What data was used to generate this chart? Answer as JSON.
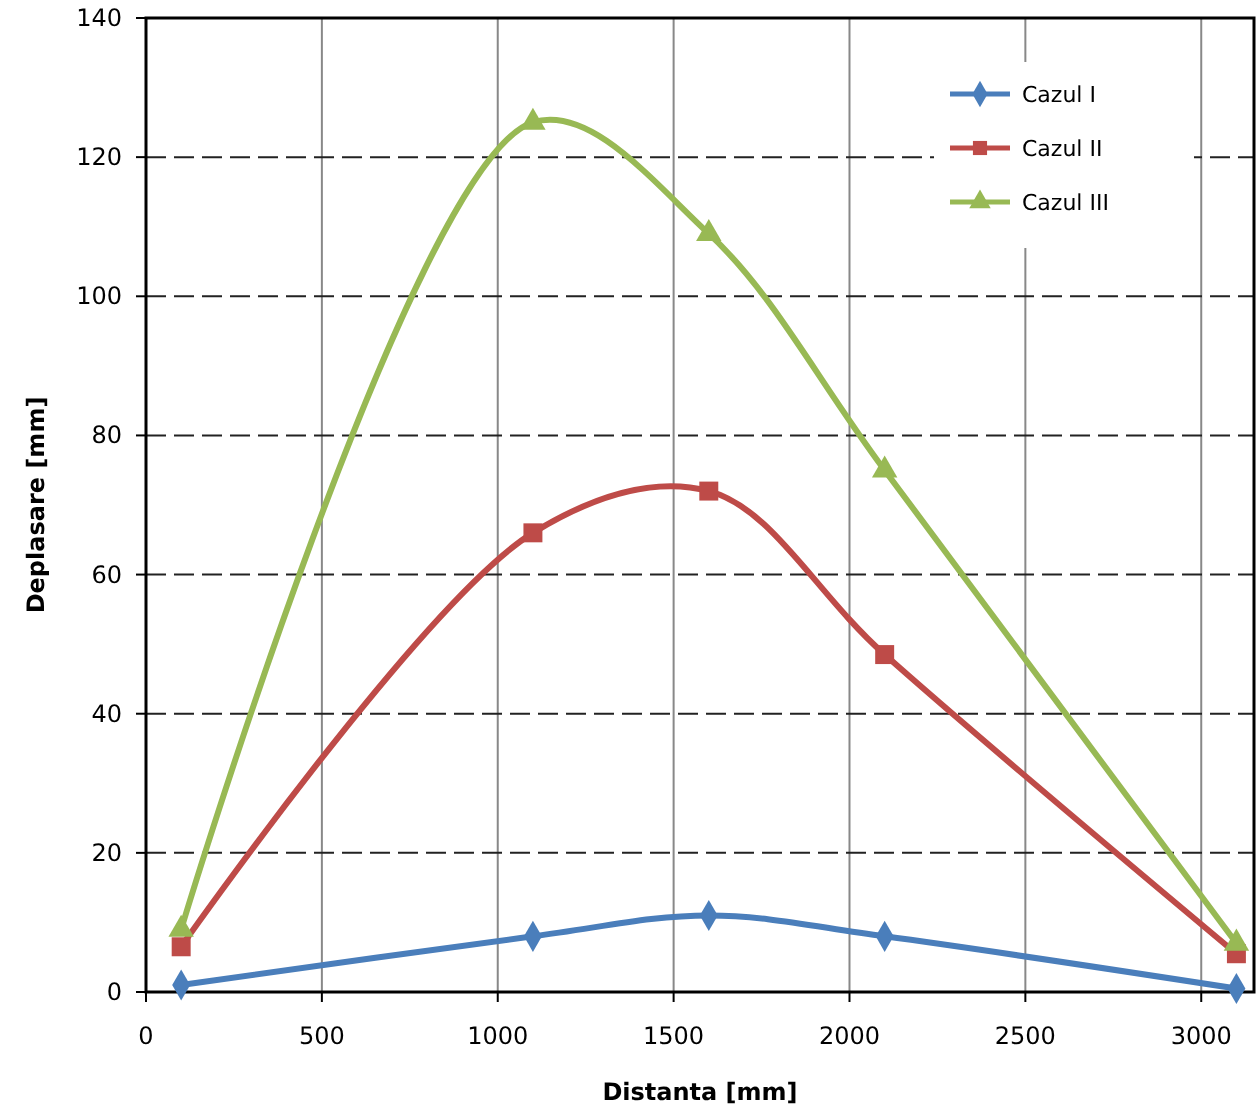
{
  "chart_data": {
    "type": "line",
    "xlabel": "Distanta [mm]",
    "ylabel": "Deplasare [mm]",
    "x": [
      100,
      1100,
      1600,
      2100,
      3100
    ],
    "xlim": [
      0,
      3150
    ],
    "xticks": [
      0,
      500,
      1000,
      1500,
      2000,
      2500,
      3000
    ],
    "ylim": [
      0,
      140
    ],
    "yticks": [
      0,
      20,
      40,
      60,
      80,
      100,
      120,
      140
    ],
    "grid": true,
    "legend": "top right",
    "series": [
      {
        "name": "Cazul I",
        "color": "#4a7ebb",
        "marker": "diamond",
        "values": [
          1,
          8,
          11,
          8,
          0.5
        ]
      },
      {
        "name": "Cazul II",
        "color": "#be4b48",
        "marker": "square",
        "values": [
          6.5,
          66,
          72,
          48.5,
          5.5
        ]
      },
      {
        "name": "Cazul III",
        "color": "#98b954",
        "marker": "triangle",
        "values": [
          9,
          125,
          109,
          75,
          7
        ]
      }
    ]
  }
}
